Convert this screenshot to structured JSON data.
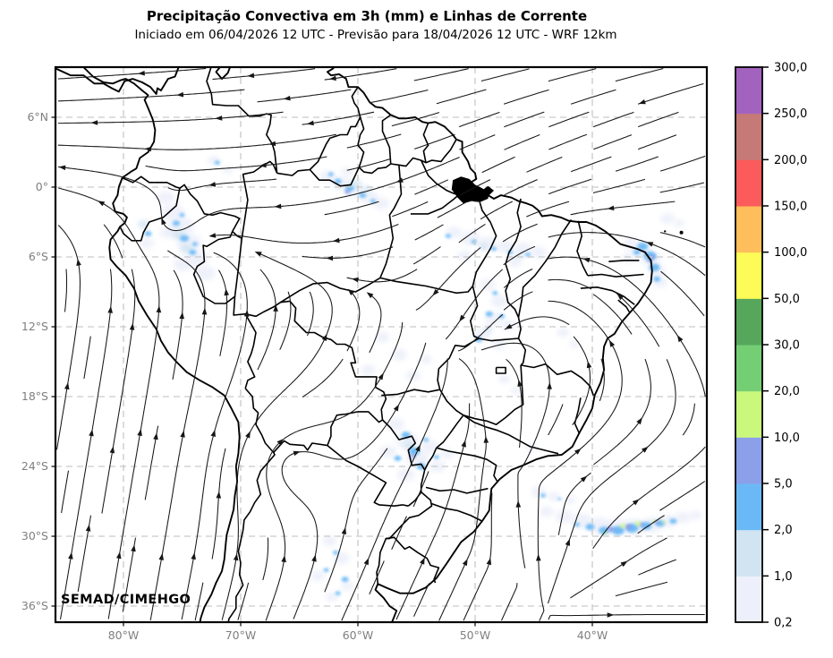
{
  "header": {
    "title": "Precipitação Convectiva em 3h (mm) e Linhas de Corrente",
    "subtitle": "Iniciado em 06/04/2026 12 UTC - Previsão para 18/04/2026 12 UTC - WRF 12km"
  },
  "watermark": "SEMAD/CIMEHGO",
  "axes": {
    "lat_ticks": [
      {
        "label": "6°N",
        "deg": 6
      },
      {
        "label": "0°",
        "deg": 0
      },
      {
        "label": "6°S",
        "deg": -6
      },
      {
        "label": "12°S",
        "deg": -12
      },
      {
        "label": "18°S",
        "deg": -18
      },
      {
        "label": "24°S",
        "deg": -24
      },
      {
        "label": "30°S",
        "deg": -30
      },
      {
        "label": "36°S",
        "deg": -36
      }
    ],
    "lon_ticks": [
      {
        "label": "80°W",
        "deg": -80
      },
      {
        "label": "70°W",
        "deg": -70
      },
      {
        "label": "60°W",
        "deg": -60
      },
      {
        "label": "50°W",
        "deg": -50
      },
      {
        "label": "40°W",
        "deg": -40
      }
    ],
    "tick_label_color": "#7f7f7f",
    "grid_color": "#c9c9c9"
  },
  "colorbar": {
    "tick_labels": [
      "0,2",
      "1,0",
      "2,0",
      "5,0",
      "10,0",
      "20,0",
      "30,0",
      "50,0",
      "100,0",
      "150,0",
      "200,0",
      "250,0",
      "300,0"
    ],
    "levels": [
      0.2,
      1,
      2,
      5,
      10,
      20,
      30,
      50,
      100,
      150,
      200,
      250,
      300
    ],
    "segment_colors": [
      "#edf0fa",
      "#d1e4f1",
      "#6ab9f6",
      "#8c9fe9",
      "#c9f87d",
      "#74cf74",
      "#56a75c",
      "#fdfb57",
      "#fdbe5b",
      "#fc5b5b",
      "#c67a77",
      "#a263bf"
    ]
  },
  "map": {
    "frame_color": "#000000",
    "land_outline_color": "#000000",
    "streamline_color": "#161616",
    "precip_palette": [
      "#edf0fa",
      "#d1e4f1",
      "#6ab9f6",
      "#8c9fe9",
      "#c9f87d"
    ]
  },
  "precip_cells": [
    [
      -76.4,
      -0.9,
      0,
      10
    ],
    [
      -75.8,
      -2.2,
      0,
      13
    ],
    [
      -75.1,
      -3.4,
      0,
      15
    ],
    [
      -74.4,
      -4.8,
      0,
      14
    ],
    [
      -73.7,
      -6.1,
      0,
      13
    ],
    [
      -73.1,
      -7.4,
      0,
      12
    ],
    [
      -74.9,
      -6.6,
      0,
      11
    ],
    [
      -76.2,
      -3.9,
      0,
      9
    ],
    [
      -78.0,
      -4.8,
      0,
      8
    ],
    [
      -62.6,
      0.9,
      0,
      9
    ],
    [
      -61.4,
      0.3,
      0,
      11
    ],
    [
      -60.2,
      -0.3,
      0,
      11
    ],
    [
      -59.0,
      -0.9,
      0,
      10
    ],
    [
      -58.0,
      -1.4,
      0,
      9
    ],
    [
      -60.9,
      1.3,
      0,
      7
    ],
    [
      -72.3,
      2.3,
      0,
      7
    ],
    [
      -71.1,
      1.5,
      0,
      6
    ],
    [
      -36.6,
      -4.9,
      0,
      10
    ],
    [
      -35.8,
      -5.4,
      0,
      11
    ],
    [
      -35.0,
      -6.2,
      0,
      11
    ],
    [
      -34.5,
      -7.2,
      0,
      10
    ],
    [
      -36.9,
      -6.1,
      0,
      8
    ],
    [
      -34.2,
      -8.2,
      0,
      8
    ],
    [
      -33.6,
      -2.7,
      0,
      8
    ],
    [
      -32.6,
      -3.1,
      0,
      6
    ],
    [
      -51.8,
      -3.9,
      0,
      9
    ],
    [
      -50.4,
      -4.4,
      0,
      11
    ],
    [
      -48.9,
      -4.9,
      0,
      11
    ],
    [
      -47.4,
      -5.1,
      0,
      10
    ],
    [
      -45.9,
      -5.3,
      0,
      10
    ],
    [
      -44.6,
      -5.6,
      0,
      9
    ],
    [
      -50.9,
      -5.9,
      0,
      8
    ],
    [
      -46.6,
      -6.4,
      0,
      8
    ],
    [
      -48.9,
      -8.4,
      0,
      9
    ],
    [
      -47.9,
      -9.8,
      0,
      10
    ],
    [
      -48.4,
      -11.3,
      0,
      10
    ],
    [
      -49.4,
      -12.7,
      0,
      9
    ],
    [
      -47.2,
      -11.9,
      0,
      8
    ],
    [
      -48.0,
      -13.5,
      0,
      8
    ],
    [
      -57.9,
      -12.9,
      0,
      8
    ],
    [
      -56.5,
      -14.4,
      0,
      9
    ],
    [
      -59.1,
      -15.7,
      0,
      8
    ],
    [
      -55.3,
      -16.2,
      0,
      8
    ],
    [
      -54.2,
      -14.8,
      0,
      7
    ],
    [
      -42.5,
      -12.5,
      0,
      7
    ],
    [
      -41.5,
      -13.5,
      0,
      6
    ],
    [
      -47.5,
      -16.5,
      0,
      7
    ],
    [
      -46.5,
      -17.5,
      0,
      6
    ],
    [
      -56.8,
      -20.4,
      0,
      10
    ],
    [
      -55.8,
      -21.8,
      0,
      13
    ],
    [
      -54.9,
      -23.3,
      0,
      13
    ],
    [
      -55.9,
      -24.7,
      0,
      10
    ],
    [
      -53.9,
      -22.3,
      0,
      10
    ],
    [
      -57.4,
      -22.7,
      0,
      9
    ],
    [
      -53.2,
      -24.0,
      0,
      9
    ],
    [
      -52.4,
      -22.9,
      0,
      8
    ],
    [
      -45.2,
      -22.4,
      0,
      6
    ],
    [
      -43.9,
      -27.9,
      0,
      8
    ],
    [
      -42.4,
      -28.3,
      0,
      10
    ],
    [
      -40.9,
      -28.7,
      0,
      12
    ],
    [
      -39.4,
      -29.1,
      0,
      13
    ],
    [
      -37.9,
      -29.2,
      0,
      13
    ],
    [
      -36.4,
      -29.2,
      0,
      13
    ],
    [
      -34.9,
      -29.0,
      0,
      12
    ],
    [
      -33.5,
      -28.7,
      0,
      10
    ],
    [
      -32.3,
      -28.4,
      0,
      9
    ],
    [
      -31.2,
      -28.2,
      0,
      7
    ],
    [
      -44.6,
      -26.2,
      0,
      8
    ],
    [
      -43.3,
      -26.6,
      0,
      7
    ],
    [
      -41.9,
      -26.9,
      0,
      6
    ],
    [
      -62.4,
      -30.4,
      0,
      8
    ],
    [
      -61.4,
      -31.9,
      0,
      9
    ],
    [
      -63.4,
      -33.4,
      0,
      8
    ],
    [
      -60.9,
      -34.3,
      0,
      7
    ],
    [
      -62.2,
      -35.2,
      0,
      7
    ],
    [
      -75.3,
      -4.1,
      1,
      7
    ],
    [
      -74.6,
      -5.3,
      1,
      7
    ],
    [
      -78.3,
      -3.2,
      1,
      6
    ],
    [
      -60.2,
      0.3,
      1,
      6
    ],
    [
      -59.2,
      -0.2,
      1,
      5
    ],
    [
      -49.3,
      -5.1,
      1,
      5
    ],
    [
      -46.2,
      -5.9,
      1,
      4
    ],
    [
      -48.9,
      -12.2,
      1,
      5
    ],
    [
      -55.6,
      -22.2,
      1,
      6
    ],
    [
      -75.5,
      -3.1,
      2,
      4
    ],
    [
      -74.8,
      -4.4,
      2,
      5
    ],
    [
      -74.1,
      -5.6,
      2,
      4
    ],
    [
      -73.9,
      -4.9,
      2,
      3
    ],
    [
      -75.0,
      -2.4,
      2,
      3
    ],
    [
      -77.9,
      -4.0,
      2,
      4
    ],
    [
      -61.7,
      0.5,
      2,
      4
    ],
    [
      -60.7,
      -0.1,
      2,
      5
    ],
    [
      -59.6,
      -0.7,
      2,
      4
    ],
    [
      -58.7,
      -1.2,
      2,
      3
    ],
    [
      -62.3,
      1.1,
      2,
      3
    ],
    [
      -72.0,
      2.1,
      2,
      3
    ],
    [
      -35.7,
      -5.1,
      2,
      6
    ],
    [
      -35.1,
      -5.9,
      2,
      7
    ],
    [
      -34.7,
      -6.9,
      2,
      6
    ],
    [
      -34.5,
      -7.9,
      2,
      4
    ],
    [
      -36.2,
      -5.6,
      2,
      4
    ],
    [
      -50.1,
      -4.7,
      2,
      3
    ],
    [
      -48.4,
      -5.3,
      2,
      3
    ],
    [
      -47.0,
      -5.6,
      2,
      3
    ],
    [
      -45.5,
      -5.8,
      2,
      3
    ],
    [
      -52.3,
      -4.2,
      2,
      3
    ],
    [
      -48.3,
      -9.1,
      2,
      3
    ],
    [
      -48.8,
      -10.9,
      2,
      4
    ],
    [
      -49.7,
      -13.1,
      2,
      4
    ],
    [
      -47.7,
      -11.1,
      2,
      3
    ],
    [
      -55.9,
      -21.3,
      2,
      5
    ],
    [
      -55.2,
      -22.7,
      2,
      6
    ],
    [
      -54.6,
      -24.0,
      2,
      5
    ],
    [
      -56.6,
      -23.3,
      2,
      4
    ],
    [
      -54.2,
      -21.7,
      2,
      3
    ],
    [
      -53.3,
      -23.2,
      2,
      3
    ],
    [
      -40.2,
      -29.2,
      2,
      5
    ],
    [
      -39.0,
      -29.5,
      2,
      6
    ],
    [
      -37.8,
      -29.5,
      2,
      7
    ],
    [
      -36.6,
      -29.3,
      2,
      7
    ],
    [
      -35.4,
      -29.1,
      2,
      6
    ],
    [
      -34.2,
      -28.9,
      2,
      5
    ],
    [
      -33.1,
      -28.7,
      2,
      4
    ],
    [
      -41.3,
      -29.0,
      2,
      3
    ],
    [
      -61.9,
      -31.4,
      2,
      3
    ],
    [
      -62.7,
      -32.9,
      2,
      3
    ],
    [
      -61.1,
      -33.7,
      2,
      4
    ],
    [
      -61.7,
      -34.9,
      2,
      3
    ],
    [
      -44.2,
      -26.5,
      2,
      3
    ],
    [
      -42.8,
      -26.8,
      2,
      2
    ],
    [
      -60.9,
      -0.4,
      3,
      3
    ],
    [
      -35.1,
      -6.3,
      3,
      3
    ],
    [
      -34.8,
      -6.0,
      3,
      3
    ],
    [
      -55.3,
      -23.1,
      3,
      3
    ],
    [
      -38.4,
      -29.4,
      3,
      4
    ],
    [
      -36.9,
      -29.2,
      3,
      4
    ],
    [
      -35.8,
      -29.0,
      3,
      3
    ],
    [
      -34.5,
      -28.8,
      3,
      3
    ],
    [
      -37.4,
      -29.1,
      4,
      3
    ],
    [
      -36.1,
      -28.9,
      4,
      3
    ],
    [
      -34.7,
      -28.7,
      4,
      2
    ],
    [
      -38.9,
      -29.7,
      4,
      2
    ],
    [
      -33.9,
      -28.8,
      4,
      2
    ]
  ]
}
